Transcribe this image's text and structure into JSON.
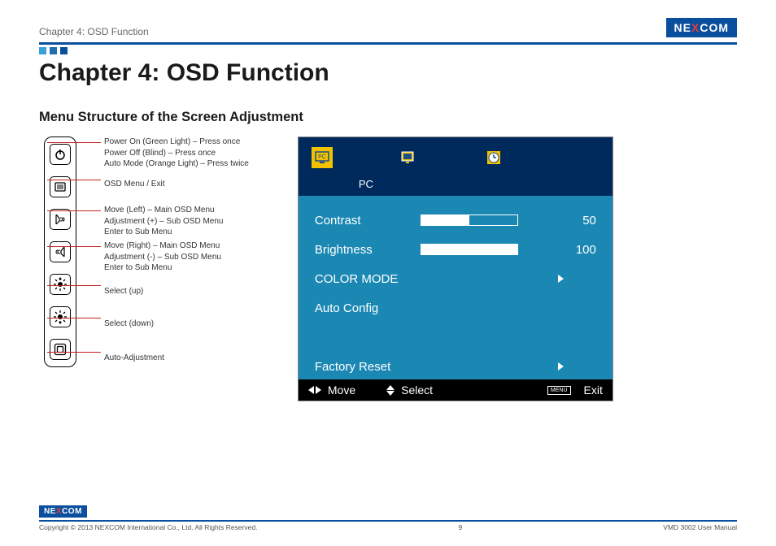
{
  "header": {
    "title": "Chapter 4: OSD Function"
  },
  "logo": {
    "pre": "NE",
    "x": "X",
    "post": "COM"
  },
  "squares": [
    "#3aa0d8",
    "#1f6fb0",
    "#0a4f9e"
  ],
  "chapter_title": "Chapter 4: OSD Function",
  "subhead": "Menu Structure of the Screen Adjustment",
  "buttons": [
    {
      "name": "power-button",
      "desc": [
        "Power On (Green Light) – Press once",
        "Power Off (Blind) – Press once",
        "Auto Mode (Orange Light) – Press twice"
      ]
    },
    {
      "name": "menu-button",
      "desc": [
        "OSD Menu / Exit"
      ]
    },
    {
      "name": "left-button",
      "desc": [
        "Move (Left) – Main OSD Menu",
        "Adjustment (+) – Sub OSD Menu",
        "Enter to Sub Menu"
      ]
    },
    {
      "name": "right-button",
      "desc": [
        "Move (Right) – Main OSD Menu",
        "Adjustment (-) – Sub OSD Menu",
        "Enter to Sub Menu"
      ]
    },
    {
      "name": "up-button",
      "desc": [
        "Select (up)"
      ]
    },
    {
      "name": "down-button",
      "desc": [
        "Select (down)"
      ]
    },
    {
      "name": "auto-button",
      "desc": [
        "Auto-Adjustment"
      ]
    }
  ],
  "osd": {
    "top_bg": "#002a5c",
    "body_bg": "#1b88b4",
    "icon_selected_bg": "#f2c200",
    "tab_label": "PC",
    "text_color": "#ffffff",
    "rows": [
      {
        "label": "Contrast",
        "value": 50,
        "fill_pct": 50
      },
      {
        "label": "Brightness",
        "value": 100,
        "fill_pct": 100
      },
      {
        "label": "COLOR MODE",
        "arrow": true
      },
      {
        "label": "Auto Config"
      },
      {
        "label": ""
      },
      {
        "label": "Factory Reset",
        "arrow": true
      }
    ],
    "bottom": {
      "move": "Move",
      "select": "Select",
      "menu": "MENU",
      "exit": "Exit"
    }
  },
  "footer": {
    "copyright": "Copyright © 2013 NEXCOM International Co., Ltd. All Rights Reserved.",
    "page": "9",
    "manual": "VMD 3002 User Manual"
  }
}
